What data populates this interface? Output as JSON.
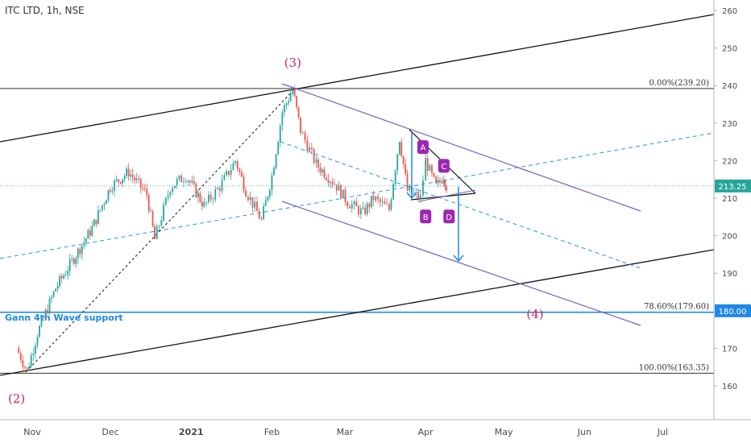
{
  "colors": {
    "up": "#26a69a",
    "down": "#ef5350",
    "channel_purple": "#7a5fc4",
    "dashed_blue": "#2196f3",
    "wave_label": "#d81b60",
    "badge_purple": "#9c27b0",
    "price_tag": "#26a69a",
    "support_tag": "#1e88e5",
    "annotation_blue": "#1e88e5"
  },
  "chart_data": {
    "type": "line",
    "title": "ITC LTD, 1h, NSE",
    "x_tick_labels": [
      "Nov",
      "Dec",
      "2021",
      "Feb",
      "Mar",
      "Apr",
      "May",
      "Jun",
      "Jul"
    ],
    "y_tick_labels": [
      "260",
      "250",
      "240",
      "230",
      "220",
      "210",
      "200",
      "190",
      "170",
      "160"
    ],
    "ylim": [
      150,
      262
    ],
    "grid": false,
    "price_series": {
      "name": "",
      "x": [
        "2020-10-26",
        "2020-10-30",
        "2020-11-03",
        "2020-11-10",
        "2020-11-17",
        "2020-11-24",
        "2020-12-01",
        "2020-12-08",
        "2020-12-15",
        "2020-12-18",
        "2020-12-24",
        "2020-12-30",
        "2021-01-06",
        "2021-01-12",
        "2021-01-18",
        "2021-01-22",
        "2021-01-28",
        "2021-02-01",
        "2021-02-05",
        "2021-02-09",
        "2021-02-12",
        "2021-02-18",
        "2021-02-25",
        "2021-03-02",
        "2021-03-08",
        "2021-03-12",
        "2021-03-18",
        "2021-03-22",
        "2021-03-25",
        "2021-03-30",
        "2021-04-01",
        "2021-04-05",
        "2021-04-08",
        "2021-04-09"
      ],
      "values": [
        170,
        164,
        174,
        186,
        194,
        202,
        213,
        217,
        211,
        199,
        213,
        216,
        208,
        213,
        220,
        212,
        204,
        216,
        233,
        239,
        228,
        219,
        214,
        209,
        206,
        210,
        207,
        226,
        212,
        210,
        220,
        213,
        216,
        213.25
      ]
    },
    "price_tag": "213.25",
    "support_tag": "180.00",
    "fib_levels": [
      {
        "label": "0.00%(239.20)",
        "value": 239.2
      },
      {
        "label": "78.60%(179.60)",
        "value": 179.6
      },
      {
        "label": "100.00%(163.35)",
        "value": 163.35
      }
    ],
    "wave_labels": [
      {
        "label": "(3)",
        "x": "2021-02-09",
        "y": 245
      },
      {
        "label": "(4)",
        "x": "2021-05-13",
        "y": 178
      },
      {
        "label": "(2)",
        "x": "2020-10-26",
        "y": 155.5
      }
    ],
    "pattern_points": [
      {
        "label": "A",
        "x": "2021-03-31",
        "y": 223.5
      },
      {
        "label": "B",
        "x": "2021-04-01",
        "y": 205
      },
      {
        "label": "C",
        "x": "2021-04-08",
        "y": 218.5
      },
      {
        "label": "D",
        "x": "2021-04-10",
        "y": 205
      }
    ],
    "annotation": "Gann 4th Wave support"
  }
}
